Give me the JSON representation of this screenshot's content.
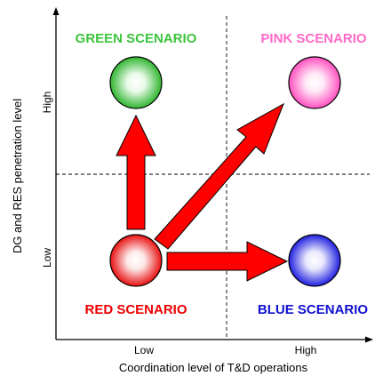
{
  "axes": {
    "x_title": "Coordination level of T&D operations",
    "y_title": "DG and RES penetration level",
    "x_ticks": [
      "Low",
      "High"
    ],
    "y_ticks": [
      "Low",
      "High"
    ]
  },
  "scenarios": [
    {
      "key": "green",
      "label": "GREEN SCENARIO",
      "color": "#3cc43c",
      "ball_color": "#2fb52f"
    },
    {
      "key": "pink",
      "label": "PINK SCENARIO",
      "color": "#ff69c8",
      "ball_color": "#ff4fbf"
    },
    {
      "key": "red",
      "label": "RED SCENARIO",
      "color": "#ee0000",
      "ball_color": "#e81010"
    },
    {
      "key": "blue",
      "label": "BLUE SCENARIO",
      "color": "#1010d0",
      "ball_color": "#2020e0"
    }
  ],
  "colors": {
    "arrow_fill": "#ff0000",
    "arrow_stroke": "#000000",
    "axis": "#000000",
    "divider": "#000000"
  }
}
